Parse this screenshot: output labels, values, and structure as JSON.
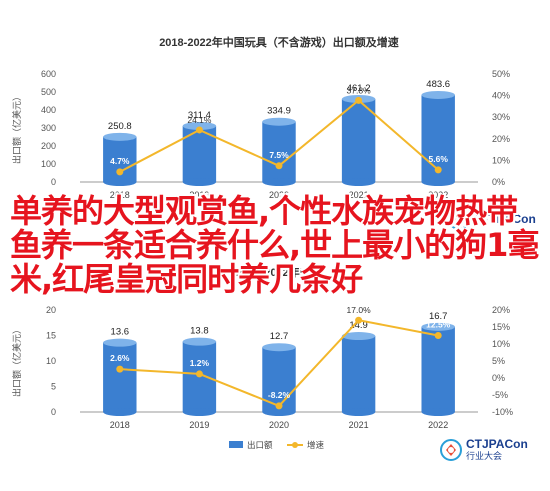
{
  "overlay_text": "单养的大型观赏鱼,个性水族宠物热带鱼养一条适合养什么,世上最小的狗1毫米,红尾皇冠同时养几条好",
  "logo": {
    "brand": "CTJPACon",
    "tagline": "行业大会"
  },
  "colors": {
    "bar": "#3b7fd0",
    "bar_top": "#7fb3ea",
    "line": "#f3b72b",
    "marker": "#f3b72b",
    "label_bg": "#2f6fc0"
  },
  "chart_data": [
    {
      "type": "bar",
      "title": "2018-2022年中国玩具（不含游戏）出口额及增速",
      "categories": [
        "2018",
        "2019",
        "2020",
        "2021",
        "2022"
      ],
      "series": [
        {
          "name": "出口额",
          "values": [
            250.8,
            311.4,
            334.9,
            461.2,
            483.6
          ],
          "labels": [
            "250.8",
            "311.4",
            "334.9",
            "461.2",
            "483.6"
          ],
          "axis": "left"
        },
        {
          "name": "增速",
          "type": "line",
          "values": [
            4.7,
            24.1,
            7.5,
            37.8,
            5.6
          ],
          "labels": [
            "4.7%",
            "24.1%",
            "7.5%",
            "37.8%",
            "5.6%"
          ],
          "axis": "right"
        }
      ],
      "ylabel": "出口额（亿美元）",
      "ylim": [
        0,
        600
      ],
      "yticks": [
        "0",
        "100",
        "200",
        "300",
        "400",
        "500",
        "600"
      ],
      "y2lim": [
        0,
        50
      ],
      "y2ticks": [
        "0%",
        "10%",
        "20%",
        "30%",
        "40%",
        "50%"
      ]
    },
    {
      "type": "bar",
      "title": "2018-2022年中国",
      "categories": [
        "2018",
        "2019",
        "2020",
        "2021",
        "2022"
      ],
      "series": [
        {
          "name": "出口额",
          "values": [
            13.6,
            13.8,
            12.7,
            14.9,
            16.7
          ],
          "labels": [
            "13.6",
            "13.8",
            "12.7",
            "14.9",
            "16.7"
          ],
          "axis": "left"
        },
        {
          "name": "增速",
          "type": "line",
          "values": [
            2.6,
            1.2,
            -8.2,
            17.0,
            12.5
          ],
          "labels": [
            "2.6%",
            "1.2%",
            "-8.2%",
            "17.0%",
            "12.5%"
          ],
          "axis": "right"
        }
      ],
      "ylabel": "出口额（亿美元）",
      "ylim": [
        0,
        20
      ],
      "yticks": [
        "0",
        "5",
        "10",
        "15",
        "20"
      ],
      "y2lim": [
        -10,
        20
      ],
      "y2ticks": [
        "-10%",
        "-5%",
        "0%",
        "5%",
        "10%",
        "15%",
        "20%"
      ],
      "legend": [
        "出口额",
        "增速"
      ]
    }
  ]
}
